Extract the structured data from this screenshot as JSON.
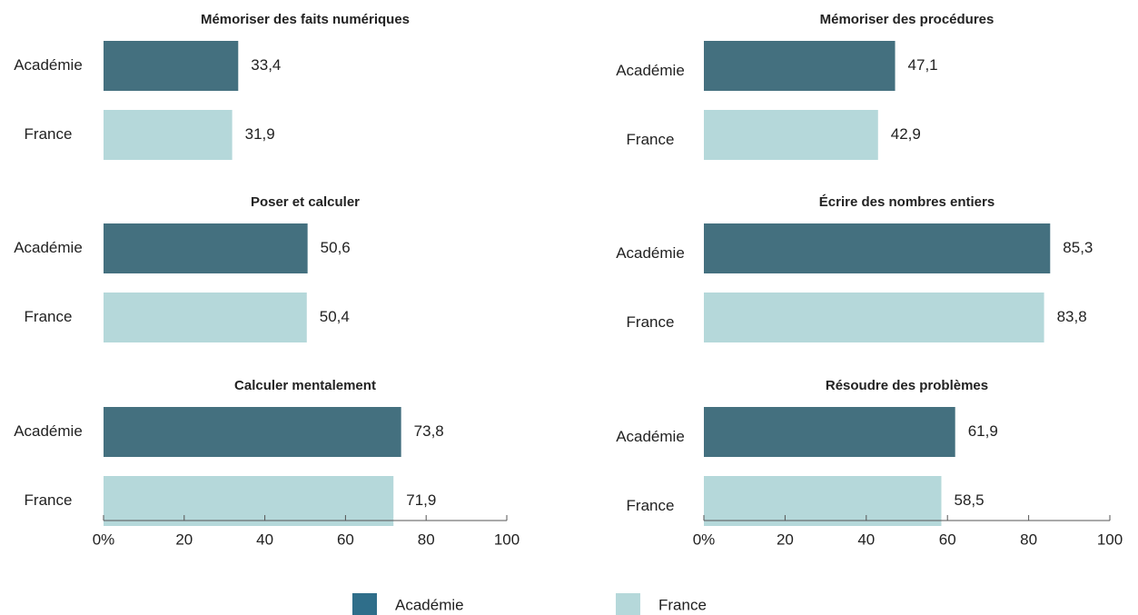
{
  "chart_data": [
    {
      "type": "bar",
      "title": "Mémoriser des faits numériques",
      "categories": [
        "Académie",
        "France"
      ],
      "values": [
        33.4,
        31.9
      ],
      "value_labels": [
        "33,4",
        "31,9"
      ],
      "colors": [
        "#44707f",
        "#b5d8da"
      ],
      "xlim": [
        0,
        100
      ]
    },
    {
      "type": "bar",
      "title": "Mémoriser des procédures",
      "categories": [
        "Académie",
        "France"
      ],
      "values": [
        47.1,
        42.9
      ],
      "value_labels": [
        "47,1",
        "42,9"
      ],
      "colors": [
        "#44707f",
        "#b5d8da"
      ],
      "xlim": [
        0,
        100
      ]
    },
    {
      "type": "bar",
      "title": "Poser et calculer",
      "categories": [
        "Académie",
        "France"
      ],
      "values": [
        50.6,
        50.4
      ],
      "value_labels": [
        "50,6",
        "50,4"
      ],
      "colors": [
        "#44707f",
        "#b5d8da"
      ],
      "xlim": [
        0,
        100
      ]
    },
    {
      "type": "bar",
      "title": "Écrire des nombres entiers",
      "categories": [
        "Académie",
        "France"
      ],
      "values": [
        85.3,
        83.8
      ],
      "value_labels": [
        "85,3",
        "83,8"
      ],
      "colors": [
        "#44707f",
        "#b5d8da"
      ],
      "xlim": [
        0,
        100
      ]
    },
    {
      "type": "bar",
      "title": "Calculer mentalement",
      "categories": [
        "Académie",
        "France"
      ],
      "values": [
        73.8,
        71.9
      ],
      "value_labels": [
        "73,8",
        "71,9"
      ],
      "colors": [
        "#44707f",
        "#b5d8da"
      ],
      "xlim": [
        0,
        100
      ],
      "xticks": [
        {
          "value": 0,
          "label": "0%"
        },
        20,
        40,
        60,
        80,
        100
      ]
    },
    {
      "type": "bar",
      "title": "Résoudre des problèmes",
      "categories": [
        "Académie",
        "France"
      ],
      "values": [
        61.9,
        58.5
      ],
      "value_labels": [
        "61,9",
        "58,5"
      ],
      "colors": [
        "#44707f",
        "#b5d8da"
      ],
      "xlim": [
        0,
        100
      ],
      "xticks": [
        {
          "value": 0,
          "label": "0%"
        },
        20,
        40,
        60,
        80,
        100
      ]
    }
  ],
  "legend": [
    {
      "name": "Académie",
      "color": "#2f6e8a"
    },
    {
      "name": "France",
      "color": "#b5d8da"
    }
  ]
}
